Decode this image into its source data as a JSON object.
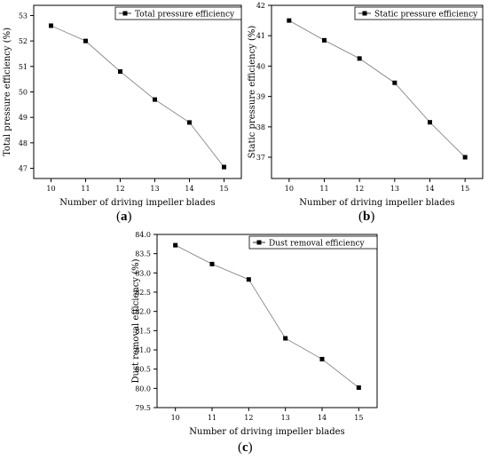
{
  "panel_labels": {
    "a_open": "(",
    "a": "a",
    "a_close": ")",
    "b_open": "(",
    "b": "b",
    "b_close": ")",
    "c_open": "(",
    "c": "c",
    "c_close": ")"
  },
  "chart_data": [
    {
      "type": "line",
      "x": [
        10,
        11,
        12,
        13,
        14,
        15
      ],
      "series": [
        {
          "name": "Total pressure efficiency",
          "values": [
            52.6,
            52.0,
            50.8,
            49.7,
            48.8,
            47.05
          ]
        }
      ],
      "xlabel": "Number of driving impeller blades",
      "ylabel": "Total pressure efficiency (%)",
      "xticks": [
        10,
        11,
        12,
        13,
        14,
        15
      ],
      "yticks": [
        47,
        48,
        49,
        50,
        51,
        52,
        53
      ],
      "xlim": [
        9.5,
        15.5
      ],
      "ylim": [
        46.6,
        53.4
      ],
      "legend": "top-right",
      "grid": false
    },
    {
      "type": "line",
      "x": [
        10,
        11,
        12,
        13,
        14,
        15
      ],
      "series": [
        {
          "name": "Static pressure efficiency",
          "values": [
            41.5,
            40.85,
            40.25,
            39.45,
            38.15,
            37.0
          ]
        }
      ],
      "xlabel": "Number of driving impeller blades",
      "ylabel": "Static pressure efficiency (%)",
      "xticks": [
        10,
        11,
        12,
        13,
        14,
        15
      ],
      "yticks": [
        37,
        38,
        39,
        40,
        41,
        42
      ],
      "xlim": [
        9.5,
        15.5
      ],
      "ylim": [
        36.3,
        42.0
      ],
      "legend": "top-right",
      "grid": false
    },
    {
      "type": "line",
      "x": [
        10,
        11,
        12,
        13,
        14,
        15
      ],
      "series": [
        {
          "name": "Dust removal efficiency",
          "values": [
            83.72,
            83.23,
            82.83,
            81.3,
            80.76,
            80.02
          ]
        }
      ],
      "xlabel": "Number of driving impeller blades",
      "ylabel": "Dust removal efficiency (%)",
      "xticks": [
        10,
        11,
        12,
        13,
        14,
        15
      ],
      "yticks": [
        "79.5",
        "80.0",
        "80.5",
        "81.0",
        "81.5",
        "82.0",
        "82.5",
        "83.0",
        "83.5",
        "84.0"
      ],
      "xlim": [
        9.5,
        15.5
      ],
      "ylim": [
        79.5,
        84.0
      ],
      "legend": "top-right",
      "grid": false
    }
  ]
}
